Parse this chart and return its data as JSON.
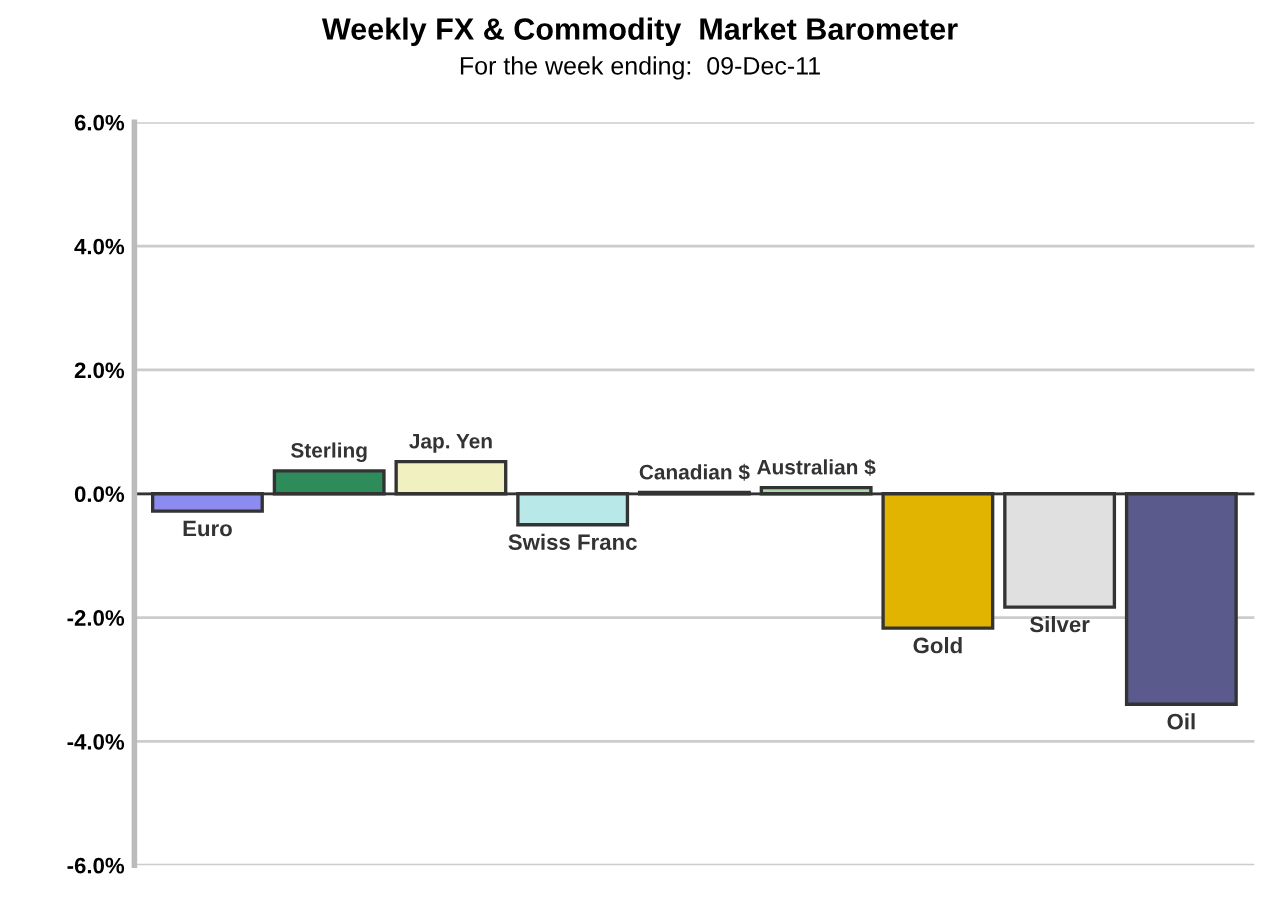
{
  "chart_data": {
    "type": "bar",
    "title": "Weekly FX & Commodity  Market Barometer",
    "subtitle": "For the week ending:  09-Dec-11",
    "categories": [
      "Euro",
      "Sterling",
      "Jap. Yen",
      "Swiss Franc",
      "Canadian $",
      "Australian $",
      "Gold",
      "Silver",
      "Oil"
    ],
    "values": [
      -0.28,
      0.37,
      0.52,
      -0.5,
      0.02,
      0.1,
      -2.17,
      -1.83,
      -3.4
    ],
    "colors": [
      "#8c8cf0",
      "#2e8b5a",
      "#f0f0c0",
      "#b8e8e8",
      "#3a5a3a",
      "#a8d8a8",
      "#e0b400",
      "#e0e0e0",
      "#5a5a8c"
    ],
    "ylim": [
      -6,
      6
    ],
    "yticks": [
      {
        "value": -6,
        "label": "-6.0%"
      },
      {
        "value": -4,
        "label": "-4.0%"
      },
      {
        "value": -2,
        "label": "-2.0%"
      },
      {
        "value": 0,
        "label": "0.0%"
      },
      {
        "value": 2,
        "label": "2.0%"
      },
      {
        "value": 4,
        "label": "4.0%"
      },
      {
        "value": 6,
        "label": "6.0%"
      }
    ],
    "grid": "y"
  }
}
